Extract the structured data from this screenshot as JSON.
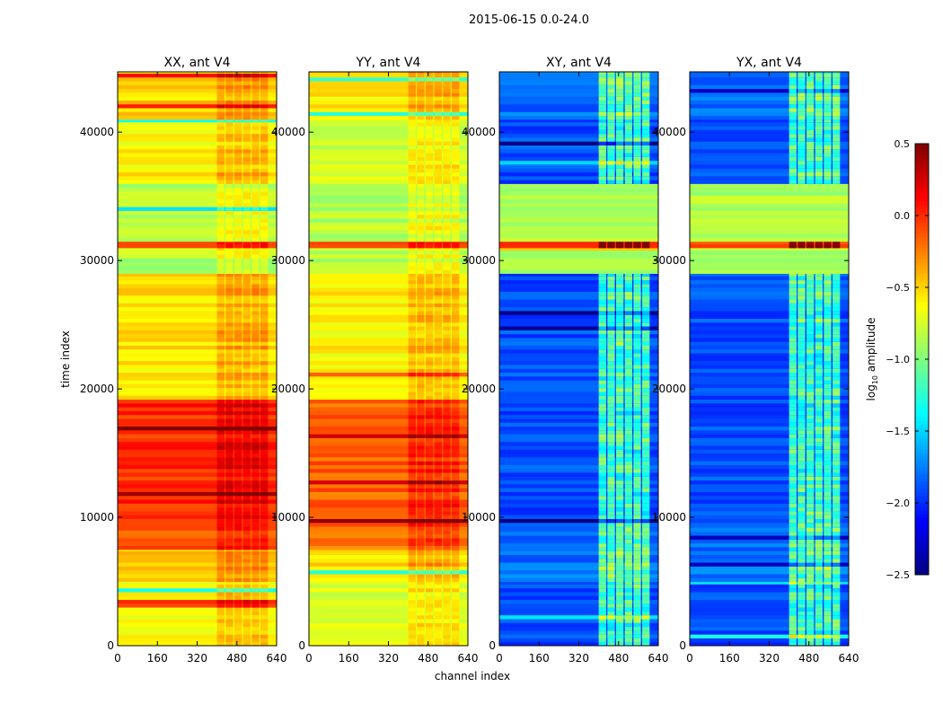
{
  "chart_data": {
    "type": "heatmap",
    "title": "2015-06-15 0.0-24.0",
    "xlabel": "channel index",
    "ylabel": "time index",
    "xlim": [
      0,
      640
    ],
    "ylim": [
      0,
      44700
    ],
    "xticks": [
      "0",
      "160",
      "320",
      "480",
      "640"
    ],
    "yticks": [
      "0",
      "10000",
      "20000",
      "30000",
      "40000"
    ],
    "xtick_values": [
      0,
      160,
      320,
      480,
      640
    ],
    "ytick_values": [
      0,
      10000,
      20000,
      30000,
      40000
    ],
    "colormap": "jet",
    "colorbar": {
      "label": "log10 amplitude",
      "label_base": "log",
      "label_sub": "10",
      "label_rest": " amplitude",
      "range": [
        -2.5,
        0.5
      ],
      "ticks": [
        "0.5",
        "0.0",
        "−0.5",
        "−1.0",
        "−1.5",
        "−2.0",
        "−2.5"
      ],
      "tick_values": [
        0.5,
        0.0,
        -0.5,
        -1.0,
        -1.5,
        -2.0,
        -2.5
      ]
    },
    "active_channels": [
      400,
      610
    ],
    "panels": [
      {
        "title": "XX, ant V4",
        "active_offset": 0.2,
        "segments": [
          [
            0,
            5000,
            -0.6
          ],
          [
            5000,
            7500,
            -0.5
          ],
          [
            7500,
            9300,
            -0.1
          ],
          [
            9300,
            19200,
            0.0
          ],
          [
            19200,
            29000,
            -0.55
          ],
          [
            29000,
            31000,
            -0.85
          ],
          [
            31000,
            31500,
            -0.05
          ],
          [
            31500,
            36000,
            -0.85
          ],
          [
            36000,
            41000,
            -0.6
          ],
          [
            41000,
            44700,
            -0.5
          ]
        ]
      },
      {
        "title": "YY, ant V4",
        "active_offset": 0.2,
        "segments": [
          [
            0,
            5000,
            -0.7
          ],
          [
            5000,
            7500,
            -0.55
          ],
          [
            7500,
            9300,
            -0.2
          ],
          [
            9300,
            19200,
            -0.15
          ],
          [
            19200,
            29000,
            -0.6
          ],
          [
            29000,
            31000,
            -0.85
          ],
          [
            31000,
            31500,
            -0.05
          ],
          [
            31500,
            36000,
            -0.85
          ],
          [
            36000,
            41000,
            -0.75
          ],
          [
            41000,
            44700,
            -0.55
          ]
        ]
      },
      {
        "title": "XY, ant V4",
        "active_offset": 0.8,
        "segments": [
          [
            0,
            5000,
            -1.9
          ],
          [
            5000,
            9300,
            -1.8
          ],
          [
            9300,
            19200,
            -1.9
          ],
          [
            19200,
            29000,
            -1.9
          ],
          [
            29000,
            31000,
            -0.85
          ],
          [
            31000,
            31500,
            -0.05
          ],
          [
            31500,
            36000,
            -0.85
          ],
          [
            36000,
            41000,
            -1.9
          ],
          [
            41000,
            44700,
            -1.8
          ]
        ]
      },
      {
        "title": "YX, ant V4",
        "active_offset": 0.8,
        "segments": [
          [
            0,
            5000,
            -1.9
          ],
          [
            5000,
            9300,
            -1.8
          ],
          [
            9300,
            19200,
            -1.9
          ],
          [
            19200,
            29000,
            -1.9
          ],
          [
            29000,
            31000,
            -0.85
          ],
          [
            31000,
            31500,
            -0.05
          ],
          [
            31500,
            36000,
            -0.85
          ],
          [
            36000,
            41000,
            -1.9
          ],
          [
            41000,
            44700,
            -1.8
          ]
        ]
      }
    ]
  }
}
